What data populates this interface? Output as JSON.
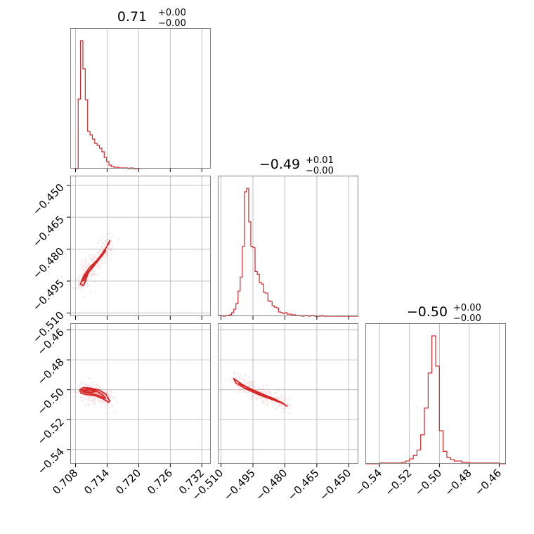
{
  "colors": {
    "series": "#d62728",
    "grid": "#b0b0b0",
    "frame": "#808080"
  },
  "chart_data": {
    "type": "corner",
    "grid": true,
    "parameters": [
      {
        "title": "0.71",
        "err_plus": "+0.00",
        "err_minus": "−0.00",
        "ticks": [
          0.708,
          0.714,
          0.72,
          0.726,
          0.732
        ],
        "tick_labels": [
          "0.708",
          "0.714",
          "0.720",
          "0.726",
          "0.732"
        ],
        "range": [
          0.707,
          0.7337
        ]
      },
      {
        "title": "−0.49",
        "err_plus": "+0.01",
        "err_minus": "−0.00",
        "ticks": [
          -0.51,
          -0.495,
          -0.48,
          -0.465,
          -0.45
        ],
        "tick_labels": [
          "−0.510",
          "−0.495",
          "−0.480",
          "−0.465",
          "−0.450"
        ],
        "range": [
          -0.5115,
          -0.4455
        ]
      },
      {
        "title": "−0.50",
        "err_plus": "+0.00",
        "err_minus": "−0.00",
        "ticks": [
          -0.54,
          -0.52,
          -0.5,
          -0.48,
          -0.46
        ],
        "tick_labels": [
          "−0.54",
          "−0.52",
          "−0.50",
          "−0.48",
          "−0.46"
        ],
        "range": [
          -0.5495,
          -0.4555
        ]
      }
    ],
    "histograms": [
      {
        "param": 0,
        "edges": [
          0.70805,
          0.7085,
          0.70895,
          0.7094,
          0.70985,
          0.7103,
          0.71075,
          0.7112,
          0.71165,
          0.7121,
          0.71255,
          0.713,
          0.71345,
          0.7139,
          0.71435,
          0.7148,
          0.71525,
          0.7157,
          0.71615,
          0.7166,
          0.71705,
          0.7175,
          0.71795,
          0.7184,
          0.71885,
          0.7193,
          0.71975,
          0.7202
        ],
        "counts": [
          0,
          99,
          182,
          142,
          98,
          53,
          48,
          42,
          36,
          33,
          29,
          24,
          16,
          10,
          5,
          3,
          2,
          2,
          1,
          1,
          1,
          1,
          0,
          1,
          0,
          0,
          0
        ]
      },
      {
        "param": 1,
        "edges": [
          -0.511,
          -0.51,
          -0.509,
          -0.508,
          -0.507,
          -0.506,
          -0.505,
          -0.504,
          -0.503,
          -0.502,
          -0.501,
          -0.5,
          -0.499,
          -0.498,
          -0.497,
          -0.496,
          -0.495,
          -0.494,
          -0.493,
          -0.492,
          -0.491,
          -0.49,
          -0.489,
          -0.488,
          -0.487,
          -0.486,
          -0.485,
          -0.484,
          -0.483,
          -0.482,
          -0.481,
          -0.48,
          -0.479,
          -0.478,
          -0.477,
          -0.476,
          -0.475,
          -0.474,
          -0.473,
          -0.472,
          -0.471,
          -0.47,
          -0.469,
          -0.468,
          -0.467,
          -0.466,
          -0.465,
          -0.464,
          -0.463,
          -0.462,
          -0.461,
          -0.46,
          -0.459,
          -0.458,
          -0.456,
          -0.454,
          -0.452,
          -0.45,
          -0.448,
          -0.4455
        ],
        "counts": [
          1,
          1,
          0,
          1,
          1,
          2,
          5,
          10,
          18,
          36,
          56,
          100,
          178,
          183,
          135,
          100,
          98,
          64,
          60,
          48,
          46,
          34,
          33,
          22,
          21,
          15,
          13,
          12,
          6,
          5,
          4,
          5,
          3,
          3,
          2,
          2,
          1,
          1,
          1,
          0,
          1,
          1,
          0,
          1,
          1,
          0,
          0,
          0,
          1,
          0,
          0,
          0,
          0,
          0,
          0,
          0,
          0,
          0,
          0
        ]
      },
      {
        "param": 2,
        "edges": [
          -0.5495,
          -0.54,
          -0.535,
          -0.53,
          -0.5275,
          -0.525,
          -0.5225,
          -0.52,
          -0.5175,
          -0.515,
          -0.5125,
          -0.51,
          -0.5075,
          -0.505,
          -0.5025,
          -0.5,
          -0.4975,
          -0.495,
          -0.4925,
          -0.49,
          -0.485,
          -0.48,
          -0.47,
          -0.46,
          -0.4555
        ],
        "counts": [
          0,
          1,
          1,
          1,
          1,
          2,
          4,
          7,
          12,
          20,
          42,
          81,
          132,
          186,
          142,
          48,
          18,
          9,
          6,
          4,
          2,
          1,
          1,
          0
        ]
      }
    ],
    "contours": [
      {
        "x_param": 0,
        "y_param": 1,
        "levels": 3,
        "outer": [
          [
            0.7089,
            -0.4965
          ],
          [
            0.7095,
            -0.4928
          ],
          [
            0.7106,
            -0.4888
          ],
          [
            0.7121,
            -0.4852
          ],
          [
            0.7133,
            -0.4812
          ],
          [
            0.7143,
            -0.4775
          ],
          [
            0.7145,
            -0.476
          ],
          [
            0.714,
            -0.4786
          ],
          [
            0.7129,
            -0.4832
          ],
          [
            0.7116,
            -0.4868
          ],
          [
            0.7104,
            -0.4912
          ],
          [
            0.7098,
            -0.4956
          ],
          [
            0.7095,
            -0.4972
          ]
        ],
        "middle": [
          [
            0.7092,
            -0.495
          ],
          [
            0.71,
            -0.4918
          ],
          [
            0.7112,
            -0.4882
          ],
          [
            0.7126,
            -0.4842
          ],
          [
            0.7137,
            -0.4808
          ],
          [
            0.7132,
            -0.4826
          ],
          [
            0.7119,
            -0.4866
          ],
          [
            0.7106,
            -0.4905
          ],
          [
            0.7097,
            -0.4946
          ]
        ],
        "inner": [
          [
            0.7095,
            -0.4938
          ],
          [
            0.7104,
            -0.491
          ],
          [
            0.7115,
            -0.488
          ],
          [
            0.7108,
            -0.4896
          ],
          [
            0.7099,
            -0.4928
          ]
        ]
      },
      {
        "x_param": 0,
        "y_param": 2,
        "levels": 3,
        "outer": [
          [
            0.7088,
            -0.5
          ],
          [
            0.7095,
            -0.4985
          ],
          [
            0.711,
            -0.499
          ],
          [
            0.7125,
            -0.5002
          ],
          [
            0.7138,
            -0.503
          ],
          [
            0.7145,
            -0.5075
          ],
          [
            0.7143,
            -0.5085
          ],
          [
            0.7133,
            -0.5062
          ],
          [
            0.7118,
            -0.504
          ],
          [
            0.71,
            -0.5032
          ],
          [
            0.709,
            -0.5022
          ]
        ],
        "middle": [
          [
            0.7091,
            -0.5002
          ],
          [
            0.7103,
            -0.4994
          ],
          [
            0.7118,
            -0.5002
          ],
          [
            0.7132,
            -0.5035
          ],
          [
            0.7137,
            -0.5058
          ],
          [
            0.7126,
            -0.5042
          ],
          [
            0.7108,
            -0.5025
          ],
          [
            0.7094,
            -0.5015
          ]
        ],
        "inner": [
          [
            0.7095,
            -0.5004
          ],
          [
            0.7107,
            -0.5
          ],
          [
            0.7119,
            -0.501
          ],
          [
            0.711,
            -0.5018
          ],
          [
            0.7098,
            -0.5012
          ]
        ]
      },
      {
        "x_param": 1,
        "y_param": 2,
        "levels": 3,
        "outer": [
          [
            -0.504,
            -0.4925
          ],
          [
            -0.5,
            -0.4965
          ],
          [
            -0.496,
            -0.4995
          ],
          [
            -0.492,
            -0.5025
          ],
          [
            -0.488,
            -0.505
          ],
          [
            -0.483,
            -0.5075
          ],
          [
            -0.479,
            -0.511
          ],
          [
            -0.4812,
            -0.5088
          ],
          [
            -0.486,
            -0.5055
          ],
          [
            -0.4905,
            -0.5035
          ],
          [
            -0.495,
            -0.501
          ],
          [
            -0.4995,
            -0.4985
          ],
          [
            -0.503,
            -0.4955
          ]
        ],
        "middle": [
          [
            -0.5015,
            -0.4955
          ],
          [
            -0.4975,
            -0.4985
          ],
          [
            -0.4935,
            -0.501
          ],
          [
            -0.4895,
            -0.5035
          ],
          [
            -0.485,
            -0.506
          ],
          [
            -0.4815,
            -0.509
          ],
          [
            -0.4855,
            -0.5068
          ],
          [
            -0.49,
            -0.5045
          ],
          [
            -0.4945,
            -0.5018
          ],
          [
            -0.499,
            -0.499
          ]
        ],
        "inner": [
          [
            -0.498,
            -0.499
          ],
          [
            -0.4945,
            -0.5005
          ],
          [
            -0.491,
            -0.5028
          ],
          [
            -0.4885,
            -0.5045
          ],
          [
            -0.4918,
            -0.5035
          ],
          [
            -0.4955,
            -0.5012
          ]
        ]
      }
    ]
  }
}
